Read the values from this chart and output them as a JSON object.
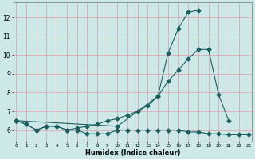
{
  "xlabel": "Humidex (Indice chaleur)",
  "bg_color": "#cce8e8",
  "grid_color": "#ddaaaa",
  "line_color": "#1a6060",
  "yticks": [
    6,
    7,
    8,
    9,
    10,
    11,
    12
  ],
  "ylim": [
    5.4,
    12.8
  ],
  "xlim": [
    0,
    23
  ],
  "marker_size": 2.5,
  "line1_x": [
    0,
    1,
    2,
    3,
    4,
    5,
    6,
    7,
    8,
    9,
    10,
    11,
    12,
    13,
    14,
    15,
    16,
    17,
    18,
    19,
    20,
    21,
    22,
    23
  ],
  "line1_y": [
    6.5,
    6.3,
    6.0,
    6.2,
    6.2,
    6.0,
    6.0,
    5.8,
    5.8,
    5.8,
    6.0,
    6.0,
    6.0,
    6.0,
    6.0,
    6.0,
    6.0,
    5.9,
    5.9,
    5.8,
    5.8,
    5.75,
    5.75,
    5.75
  ],
  "line2_x": [
    0,
    1,
    2,
    3,
    4,
    5,
    6,
    7,
    8,
    9,
    10,
    11,
    12,
    13,
    14,
    15,
    16,
    17,
    18,
    19,
    20,
    21
  ],
  "line2_y": [
    6.5,
    6.3,
    6.0,
    6.2,
    6.2,
    6.0,
    6.1,
    6.2,
    6.3,
    6.5,
    6.6,
    6.8,
    7.0,
    7.3,
    7.8,
    8.6,
    9.2,
    9.8,
    10.3,
    10.3,
    7.9,
    6.5
  ],
  "line3_x": [
    0,
    10,
    14,
    15,
    16,
    17,
    18
  ],
  "line3_y": [
    6.5,
    6.2,
    7.8,
    10.1,
    11.4,
    12.3,
    12.4
  ]
}
